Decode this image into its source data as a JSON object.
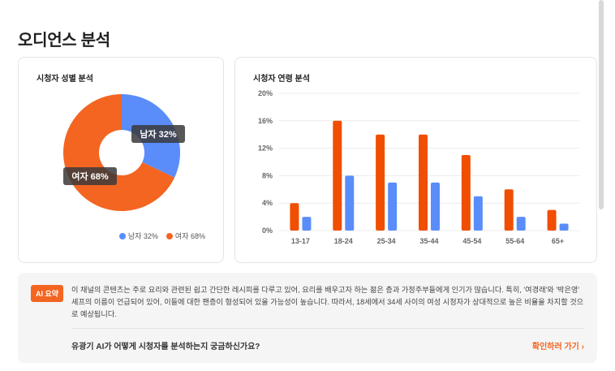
{
  "page": {
    "title": "오디언스 분석"
  },
  "gender_card": {
    "title": "시청자 성별 분석",
    "labels": {
      "male": "남자 32%",
      "female": "여자 68%"
    },
    "legend": [
      {
        "label": "남자 32%",
        "color": "#5a8dfa"
      },
      {
        "label": "여자 68%",
        "color": "#f36521"
      }
    ]
  },
  "age_card": {
    "title": "시청자 연령 분석"
  },
  "ai": {
    "badge": "AI 요약",
    "summary": "이 채널의 콘텐츠는 주로 요리와 관련된 쉽고 간단한 레시피를 다루고 있어, 요리를 배우고자 하는 젊은 층과 가정주부들에게 인기가 많습니다. 특히, '여경래'와 '박은영' 셰프의 이름이 언급되어 있어, 이들에 대한 팬층이 형성되어 있을 가능성이 높습니다. 따라서, 18세에서 34세 사이의 여성 시청자가 상대적으로 높은 비율을 차지할 것으로 예상됩니다.",
    "question": "유광기 AI가 어떻게 시청자를 분석하는지 궁금하신가요?",
    "link": "확인하러 가기 ›"
  },
  "colors": {
    "accent": "#f36521",
    "male": "#5a8dfa",
    "female": "#f36521"
  },
  "chart_data": [
    {
      "type": "pie",
      "categories": [
        "남자",
        "여자"
      ],
      "values": [
        32,
        68
      ],
      "colors": [
        "#5a8dfa",
        "#f36521"
      ]
    },
    {
      "type": "bar",
      "categories": [
        "13-17",
        "18-24",
        "25-34",
        "35-44",
        "45-54",
        "55-64",
        "65+"
      ],
      "series": [
        {
          "values": [
            4,
            16,
            14,
            14,
            11,
            6,
            3
          ],
          "color": "#f04e00"
        },
        {
          "values": [
            2,
            8,
            7,
            7,
            5,
            2,
            1
          ],
          "color": "#5a8dfa"
        }
      ],
      "yticks": [
        "0%",
        "4%",
        "8%",
        "12%",
        "16%",
        "20%"
      ],
      "ylim": [
        0,
        20
      ],
      "grid": true
    }
  ]
}
